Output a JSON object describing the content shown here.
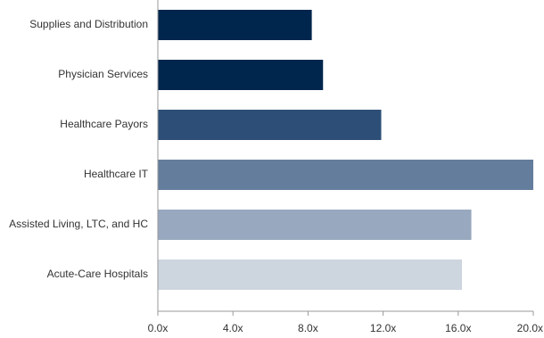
{
  "chart_data": {
    "type": "bar",
    "orientation": "horizontal",
    "categories": [
      "Supplies and Distribution",
      "Physician Services",
      "Healthcare Payors",
      "Healthcare IT",
      "Assisted Living, LTC, and HC",
      "Acute-Care Hospitals"
    ],
    "values": [
      8.2,
      8.8,
      11.9,
      20.0,
      16.7,
      16.2
    ],
    "bar_colors": [
      "#00264d",
      "#00264d",
      "#2d4f77",
      "#647d9c",
      "#98a8be",
      "#cdd5df"
    ],
    "xlim": [
      0,
      20
    ],
    "xticks": [
      "0.0x",
      "4.0x",
      "8.0x",
      "12.0x",
      "16.0x",
      "20.0x"
    ],
    "xtick_values": [
      0,
      4,
      8,
      12,
      16,
      20
    ],
    "grid": false,
    "legend": "none",
    "title": "",
    "xlabel": "",
    "ylabel": ""
  }
}
